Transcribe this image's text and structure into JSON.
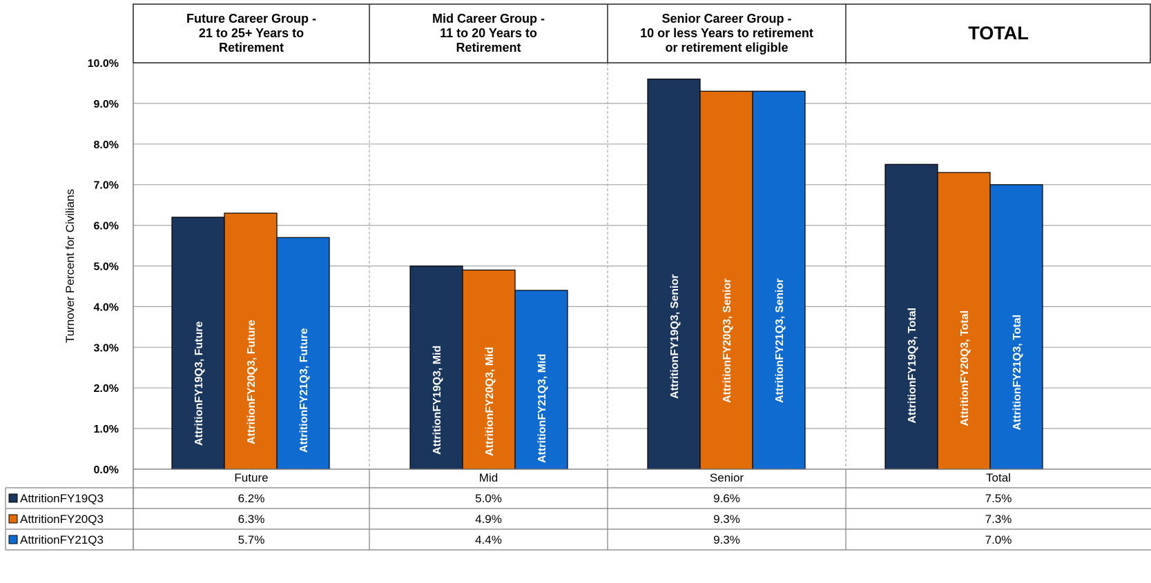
{
  "chart_data": {
    "type": "bar",
    "ylabel": "Turnover Percent for Civilians",
    "ylim": [
      0,
      10
    ],
    "y_ticks": [
      "0.0%",
      "1.0%",
      "2.0%",
      "3.0%",
      "4.0%",
      "5.0%",
      "6.0%",
      "7.0%",
      "8.0%",
      "9.0%",
      "10.0%"
    ],
    "grid": true,
    "legend_placement": "data-table-left",
    "categories": [
      "Future",
      "Mid",
      "Senior",
      "Total"
    ],
    "group_headers": [
      [
        "Future Career Group -",
        "21 to 25+ Years to",
        "Retirement"
      ],
      [
        "Mid Career Group -",
        "11 to 20 Years to",
        "Retirement"
      ],
      [
        "Senior Career Group -",
        "10 or less Years to retirement",
        "or retirement eligible"
      ],
      [
        "TOTAL"
      ]
    ],
    "series": [
      {
        "name": "AttritionFY19Q3",
        "color": "#1b365d",
        "values": [
          6.2,
          5.0,
          9.6,
          7.5
        ],
        "labels": [
          "AttritionFY19Q3, Future",
          "AttritionFY19Q3, Mid",
          "AttritionFY19Q3, Senior",
          "AttritionFY19Q3, Total"
        ],
        "table": [
          "6.2%",
          "5.0%",
          "9.6%",
          "7.5%"
        ]
      },
      {
        "name": "AttritionFY20Q3",
        "color": "#e36c0a",
        "values": [
          6.3,
          4.9,
          9.3,
          7.3
        ],
        "labels": [
          "AttritionFY20Q3, Future",
          "AttritionFY20Q3, Mid",
          "AttritionFY20Q3, Senior",
          "AttritionFY20Q3, Total"
        ],
        "table": [
          "6.3%",
          "4.9%",
          "9.3%",
          "7.3%"
        ]
      },
      {
        "name": "AttritionFY21Q3",
        "color": "#0f6bcf",
        "values": [
          5.7,
          4.4,
          9.3,
          7.0
        ],
        "labels": [
          "AttritionFY21Q3, Future",
          "AttritionFY21Q3, Mid",
          "AttritionFY21Q3, Senior",
          "AttritionFY21Q3, Total"
        ],
        "table": [
          "5.7%",
          "4.4%",
          "9.3%",
          "7.0%"
        ]
      }
    ]
  }
}
